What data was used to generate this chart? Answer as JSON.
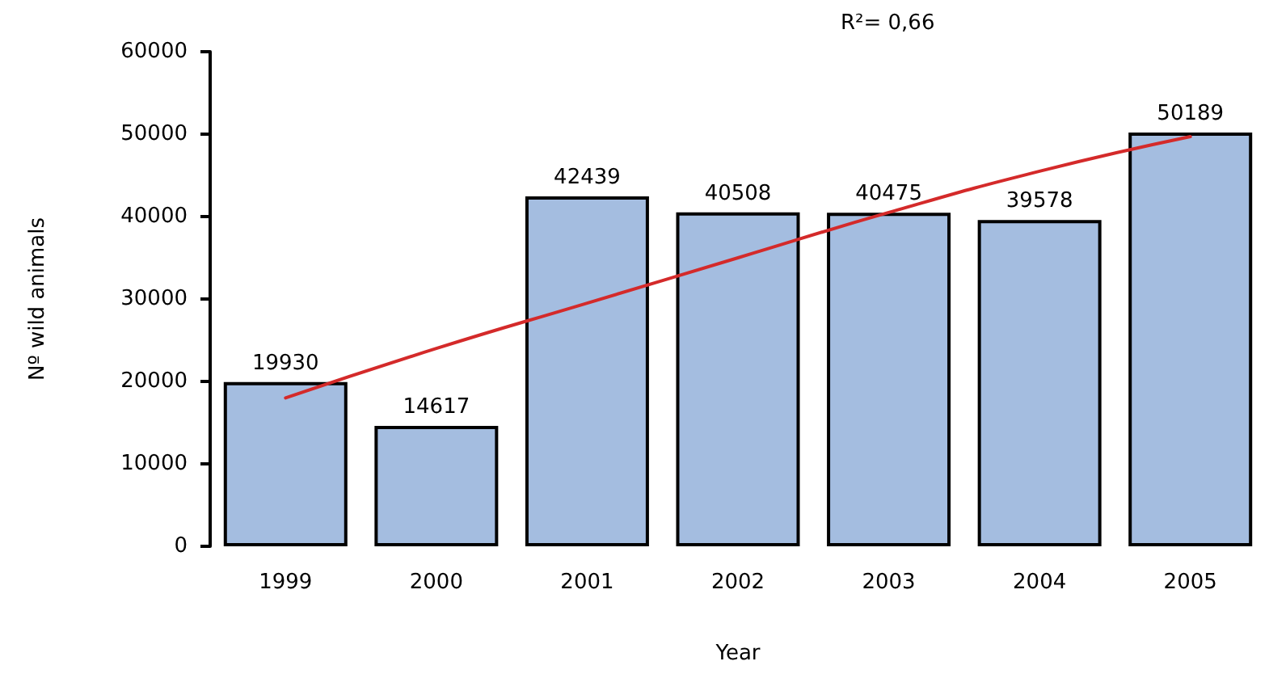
{
  "chart_data": {
    "type": "bar",
    "xlabel": "Year",
    "ylabel": "Nº wild animals",
    "categories": [
      "1999",
      "2000",
      "2001",
      "2002",
      "2003",
      "2004",
      "2005"
    ],
    "series": [
      {
        "color": "#a4bde0",
        "values": [
          19930,
          14617,
          42439,
          40508,
          40475,
          39578,
          50189
        ],
        "data_labels": true
      },
      {
        "type": "line",
        "color": "#d42a2a",
        "values": [
          18000,
          24000,
          29500,
          35000,
          40500,
          45500,
          49700
        ],
        "marker": "none"
      }
    ],
    "annotations": [
      "R²= 0,66"
    ],
    "ylim": [
      0,
      60000
    ],
    "yticks": [
      0,
      10000,
      20000,
      30000,
      40000,
      50000,
      60000
    ],
    "grid": false
  }
}
